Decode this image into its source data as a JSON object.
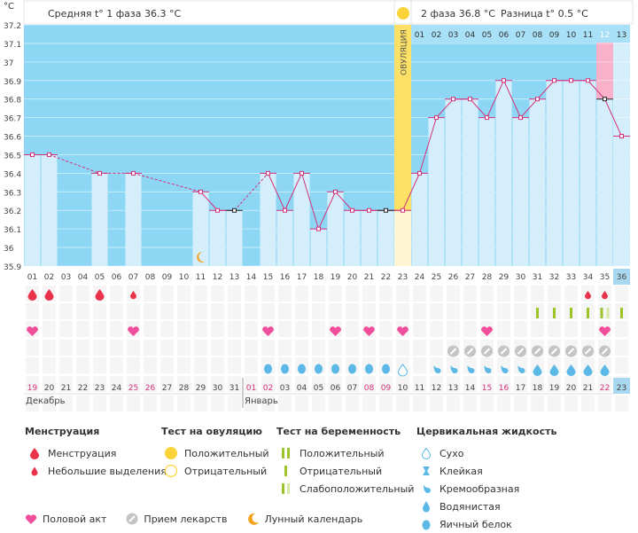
{
  "header": {
    "unit": "°C",
    "phase1_text": "Средняя t° 1 фаза 36.3 °C",
    "phase2_text": "2 фаза 36.8 °C",
    "diff_text": "Разница t° 0.5 °C",
    "ovulation_label": "ОВУЛЯЦИЯ"
  },
  "chart_data": {
    "type": "line",
    "ylabel": "°C",
    "ylim": [
      35.9,
      37.2
    ],
    "yticks": [
      "37.2",
      "37.1",
      "37",
      "36.9",
      "36.8",
      "36.7",
      "36.6",
      "36.5",
      "36.4",
      "36.3",
      "36.2",
      "36.1",
      "36",
      "35.9"
    ],
    "cycle_days": [
      "01",
      "02",
      "03",
      "04",
      "05",
      "06",
      "07",
      "08",
      "09",
      "10",
      "11",
      "12",
      "13",
      "14",
      "15",
      "16",
      "17",
      "18",
      "19",
      "20",
      "21",
      "22",
      "23",
      "24",
      "25",
      "26",
      "27",
      "28",
      "29",
      "30",
      "31",
      "32",
      "33",
      "34",
      "35",
      "36"
    ],
    "dates": [
      "19",
      "20",
      "21",
      "22",
      "23",
      "24",
      "25",
      "26",
      "27",
      "28",
      "29",
      "30",
      "31",
      "01",
      "02",
      "03",
      "04",
      "05",
      "06",
      "07",
      "08",
      "09",
      "10",
      "11",
      "12",
      "13",
      "14",
      "15",
      "16",
      "17",
      "18",
      "19",
      "20",
      "21",
      "22",
      "23"
    ],
    "weekend_indices": [
      0,
      6,
      7,
      13,
      14,
      20,
      21,
      27,
      28,
      34
    ],
    "month_labels": [
      {
        "index": 0,
        "label": "Декабрь"
      },
      {
        "index": 13,
        "label": "Январь"
      }
    ],
    "phase2_day_labels": [
      "01",
      "02",
      "03",
      "04",
      "05",
      "06",
      "07",
      "08",
      "09",
      "10",
      "11",
      "12",
      "13"
    ],
    "temperatures": [
      36.5,
      36.5,
      null,
      null,
      36.4,
      null,
      36.4,
      null,
      null,
      null,
      36.3,
      36.2,
      36.2,
      null,
      36.4,
      36.2,
      36.4,
      36.1,
      36.3,
      36.2,
      36.2,
      36.2,
      36.2,
      36.4,
      36.7,
      36.8,
      36.8,
      36.7,
      36.9,
      36.7,
      36.8,
      36.9,
      36.9,
      36.9,
      36.8,
      36.6
    ],
    "ovulation_index": 22,
    "menstruation": [
      0,
      1,
      4
    ],
    "light_discharge": [
      6,
      33,
      34
    ],
    "intercourse": [
      0,
      6,
      14,
      18,
      20,
      22,
      27,
      34
    ],
    "medication": [
      25,
      26,
      27,
      28,
      29,
      30,
      31,
      32,
      33,
      34
    ],
    "moon": [
      10
    ],
    "pregnancy_negative": [
      30,
      31,
      32,
      33,
      35
    ],
    "pregnancy_weak": [
      34
    ],
    "mucus_egg": [
      15,
      16,
      17,
      18,
      19,
      20,
      21
    ],
    "mucus_dry": [
      22
    ],
    "mucus_creamy": [
      24,
      25,
      26,
      27,
      28,
      29
    ],
    "mucus_watery": [
      30,
      31,
      32,
      33,
      34
    ],
    "mucus_egg_early": [
      14
    ]
  },
  "legend": {
    "menstruation_title": "Менструация",
    "menstruation_item": "Менструация",
    "light_item": "Небольшие выделения",
    "ovulation_test_title": "Тест на овуляцию",
    "ov_positive": "Положительный",
    "ov_negative": "Отрицательный",
    "pregnancy_test_title": "Тест на беременность",
    "pr_positive": "Положительный",
    "pr_negative": "Отрицательный",
    "pr_weak": "Слабоположительный",
    "cervical_title": "Цервикальная жидкость",
    "cv_dry": "Сухо",
    "cv_sticky": "Клейкая",
    "cv_creamy": "Кремообразная",
    "cv_watery": "Водянистая",
    "cv_egg": "Яичный белок",
    "intercourse": "Половой акт",
    "medication": "Прием лекарств",
    "moon": "Лунный календарь"
  },
  "colors": {
    "sky": "#8dd7f5",
    "bar": "#d4eefb",
    "line": "#d2317a",
    "ovulation": "#fde167",
    "pink": "#f8b1c8",
    "red": "#e8334b",
    "green": "#9dc52a",
    "drop": "#5cb8e6",
    "cell": "#efefef"
  }
}
